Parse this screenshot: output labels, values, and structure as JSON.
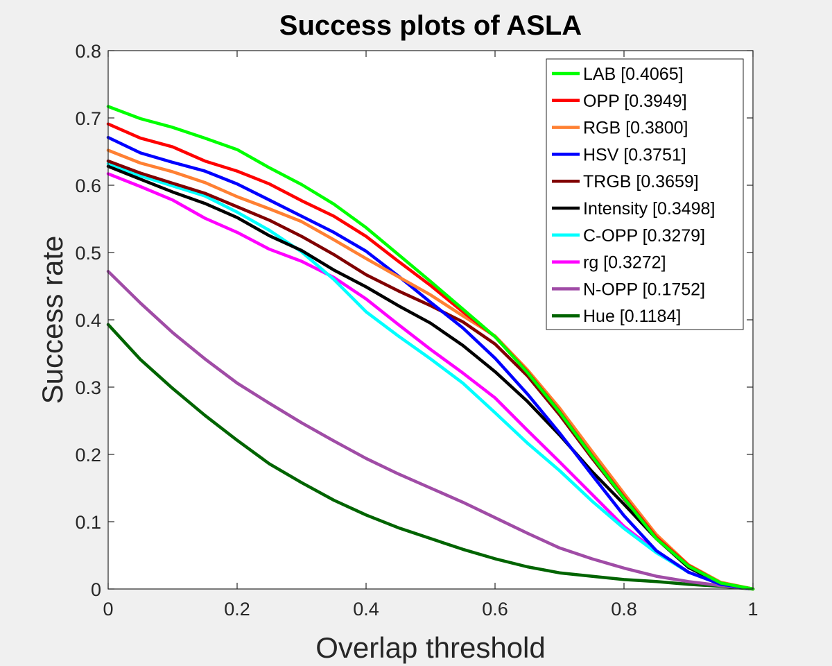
{
  "chart_data": {
    "type": "line",
    "title": "Success plots of ASLA",
    "xlabel": "Overlap threshold",
    "ylabel": "Success rate",
    "xlim": [
      0,
      1
    ],
    "ylim": [
      0,
      0.8
    ],
    "xticks": [
      0,
      0.2,
      0.4,
      0.6,
      0.8,
      1
    ],
    "xtick_labels": [
      "0",
      "0.2",
      "0.4",
      "0.6",
      "0.8",
      "1"
    ],
    "yticks": [
      0,
      0.1,
      0.2,
      0.3,
      0.4,
      0.5,
      0.6,
      0.7,
      0.8
    ],
    "ytick_labels": [
      "0",
      "0.1",
      "0.2",
      "0.3",
      "0.4",
      "0.5",
      "0.6",
      "0.7",
      "0.8"
    ],
    "grid": false,
    "legend_position": "top-right",
    "x": [
      0,
      0.05,
      0.1,
      0.15,
      0.2,
      0.25,
      0.3,
      0.35,
      0.4,
      0.45,
      0.5,
      0.55,
      0.6,
      0.65,
      0.7,
      0.75,
      0.8,
      0.85,
      0.9,
      0.95,
      1.0
    ],
    "series": [
      {
        "name": "LAB [0.4065]",
        "color": "#00ff00",
        "values": [
          0.717,
          0.699,
          0.686,
          0.67,
          0.653,
          0.626,
          0.601,
          0.572,
          0.537,
          0.497,
          0.457,
          0.416,
          0.375,
          0.322,
          0.263,
          0.198,
          0.135,
          0.075,
          0.034,
          0.009,
          0.0
        ]
      },
      {
        "name": "OPP [0.3949]",
        "color": "#ff0000",
        "values": [
          0.691,
          0.67,
          0.657,
          0.636,
          0.621,
          0.602,
          0.577,
          0.554,
          0.524,
          0.487,
          0.451,
          0.412,
          0.375,
          0.323,
          0.264,
          0.199,
          0.137,
          0.077,
          0.035,
          0.009,
          0.0
        ]
      },
      {
        "name": "RGB [0.3800]",
        "color": "#ff8033",
        "values": [
          0.652,
          0.633,
          0.62,
          0.604,
          0.583,
          0.565,
          0.546,
          0.519,
          0.491,
          0.464,
          0.437,
          0.406,
          0.376,
          0.326,
          0.269,
          0.205,
          0.142,
          0.081,
          0.036,
          0.01,
          0.0
        ]
      },
      {
        "name": "HSV [0.3751]",
        "color": "#0000ff",
        "values": [
          0.671,
          0.648,
          0.634,
          0.621,
          0.602,
          0.578,
          0.554,
          0.53,
          0.502,
          0.465,
          0.426,
          0.388,
          0.343,
          0.29,
          0.232,
          0.17,
          0.109,
          0.057,
          0.025,
          0.007,
          0.0
        ]
      },
      {
        "name": "TRGB [0.3659]",
        "color": "#800000",
        "values": [
          0.636,
          0.618,
          0.603,
          0.588,
          0.568,
          0.548,
          0.524,
          0.497,
          0.467,
          0.443,
          0.421,
          0.397,
          0.364,
          0.317,
          0.259,
          0.195,
          0.134,
          0.078,
          0.034,
          0.009,
          0.0
        ]
      },
      {
        "name": "Intensity [0.3498]",
        "color": "#000000",
        "values": [
          0.628,
          0.609,
          0.59,
          0.573,
          0.552,
          0.525,
          0.503,
          0.474,
          0.449,
          0.421,
          0.395,
          0.362,
          0.323,
          0.279,
          0.229,
          0.175,
          0.126,
          0.075,
          0.032,
          0.008,
          0.0
        ]
      },
      {
        "name": "C-OPP [0.3279]",
        "color": "#00ffff",
        "values": [
          0.632,
          0.614,
          0.599,
          0.584,
          0.56,
          0.533,
          0.501,
          0.46,
          0.412,
          0.376,
          0.342,
          0.306,
          0.262,
          0.217,
          0.176,
          0.131,
          0.09,
          0.054,
          0.025,
          0.007,
          0.0
        ]
      },
      {
        "name": "rg [0.3272]",
        "color": "#ff00ff",
        "values": [
          0.617,
          0.598,
          0.578,
          0.551,
          0.53,
          0.505,
          0.487,
          0.463,
          0.431,
          0.393,
          0.356,
          0.321,
          0.284,
          0.236,
          0.189,
          0.141,
          0.093,
          0.056,
          0.025,
          0.007,
          0.0
        ]
      },
      {
        "name": "N-OPP [0.1752]",
        "color": "#a04ca6",
        "values": [
          0.472,
          0.425,
          0.381,
          0.342,
          0.306,
          0.276,
          0.247,
          0.22,
          0.194,
          0.171,
          0.15,
          0.129,
          0.106,
          0.083,
          0.061,
          0.045,
          0.031,
          0.019,
          0.011,
          0.005,
          0.0
        ]
      },
      {
        "name": "Hue [0.1184]",
        "color": "#006400",
        "values": [
          0.393,
          0.341,
          0.298,
          0.258,
          0.221,
          0.186,
          0.158,
          0.132,
          0.11,
          0.091,
          0.075,
          0.059,
          0.045,
          0.033,
          0.024,
          0.019,
          0.014,
          0.011,
          0.007,
          0.004,
          0.0
        ]
      }
    ]
  }
}
